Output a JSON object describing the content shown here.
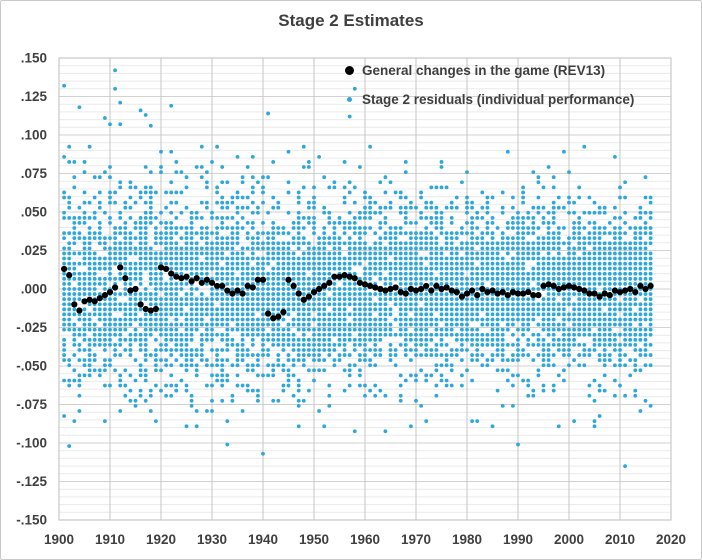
{
  "title": "Stage 2 Estimates",
  "colors": {
    "series_rev13": "#000000",
    "series_residuals": "#2ea8dc",
    "text": "#3f3f3f",
    "grid_minor": "#eaeaea",
    "grid_major_h": "#d2d2d2",
    "grid_major_v": "#c6c6c6",
    "plot_border": "#bdbdbd",
    "chart_border": "#c9c9c9",
    "background": "#ffffff"
  },
  "chart_data": {
    "type": "scatter",
    "title": "Stage 2 Estimates",
    "x_axis": {
      "min": 1900,
      "max": 2020,
      "tick_step": 10,
      "tick_labels": [
        "1900",
        "1910",
        "1920",
        "1930",
        "1940",
        "1950",
        "1960",
        "1970",
        "1980",
        "1990",
        "2000",
        "2010",
        "2020"
      ]
    },
    "y_axis": {
      "min": -0.15,
      "max": 0.15,
      "major_step": 0.025,
      "minor_step": 0.005,
      "tick_labels": [
        ".150",
        ".125",
        ".100",
        ".075",
        ".050",
        ".025",
        ".000",
        "-.025",
        "-.050",
        "-.075",
        "-.100",
        "-.125",
        "-.150"
      ]
    },
    "grid": {
      "horizontal_minor": true,
      "horizontal_major": true,
      "vertical_major_decades": true
    },
    "legend_position": "inside-top-right",
    "series": [
      {
        "name": "General changes in the game (REV13)",
        "marker": {
          "shape": "circle",
          "color": "#000000",
          "radius_px": 3.1
        },
        "years_start": 1901,
        "years_end": 2016,
        "values": [
          0.013,
          0.009,
          -0.01,
          -0.014,
          -0.008,
          -0.007,
          -0.008,
          -0.006,
          -0.004,
          -0.002,
          0.001,
          0.014,
          0.007,
          -0.001,
          0.0,
          -0.01,
          -0.013,
          -0.014,
          -0.013,
          0.014,
          0.013,
          0.01,
          0.008,
          0.007,
          0.008,
          0.005,
          0.007,
          0.004,
          0.006,
          0.004,
          0.002,
          0.002,
          -0.001,
          -0.003,
          -0.001,
          -0.003,
          0.002,
          0.001,
          0.006,
          0.006,
          -0.016,
          -0.019,
          -0.018,
          -0.015,
          0.006,
          0.002,
          -0.003,
          -0.007,
          -0.005,
          -0.002,
          0.0,
          0.002,
          0.004,
          0.008,
          0.008,
          0.009,
          0.008,
          0.007,
          0.004,
          0.003,
          0.002,
          0.001,
          0.0,
          -0.001,
          0.0,
          0.001,
          -0.002,
          -0.003,
          0.0,
          -0.001,
          0.0,
          0.002,
          -0.001,
          0.002,
          0.0,
          0.001,
          -0.001,
          -0.002,
          -0.005,
          -0.003,
          -0.001,
          -0.004,
          0.0,
          -0.002,
          -0.001,
          -0.003,
          -0.002,
          -0.004,
          -0.002,
          -0.003,
          -0.003,
          -0.002,
          -0.004,
          -0.004,
          0.002,
          0.003,
          0.002,
          0.0,
          0.001,
          0.002,
          0.001,
          0.0,
          -0.001,
          -0.003,
          -0.003,
          -0.005,
          -0.003,
          -0.004,
          -0.001,
          -0.002,
          -0.001,
          0.0,
          -0.002,
          0.002,
          0.0,
          0.002
        ]
      },
      {
        "name": "Stage 2 residuals (individual performance)",
        "marker": {
          "shape": "dot",
          "color": "#2ea8dc",
          "radius_px": 1.9
        },
        "description": "Dense cloud of individual-player residuals for every season 1901-2016; roughly 45-70 points per season centered near 0, bulk within +/-0.05, sparser tail to +/-0.09, rare outliers beyond",
        "seasons": {
          "start": 1901,
          "end": 2016
        },
        "generator": {
          "seed": 1913,
          "count_base": 46,
          "count_per_year": 0.1,
          "count_jitter": 14,
          "sd_start": 0.031,
          "sd_end": 0.0245,
          "quantize": 0.0033,
          "tail_max_early": 3,
          "tail_max_late": 2,
          "tail_lo": 0.054,
          "tail_hi": 0.094
        },
        "outliers": [
          [
            1901,
            0.132
          ],
          [
            1902,
            -0.102
          ],
          [
            1904,
            0.118
          ],
          [
            1909,
            0.111
          ],
          [
            1910,
            0.107
          ],
          [
            1911,
            0.142
          ],
          [
            1911,
            0.13
          ],
          [
            1912,
            0.121
          ],
          [
            1912,
            0.107
          ],
          [
            1916,
            0.116
          ],
          [
            1917,
            0.113
          ],
          [
            1918,
            0.106
          ],
          [
            1922,
            0.119
          ],
          [
            1933,
            -0.101
          ],
          [
            1940,
            -0.107
          ],
          [
            1941,
            0.114
          ],
          [
            1957,
            0.112
          ],
          [
            1958,
            0.13
          ],
          [
            1990,
            -0.101
          ],
          [
            2011,
            -0.115
          ]
        ]
      }
    ]
  }
}
